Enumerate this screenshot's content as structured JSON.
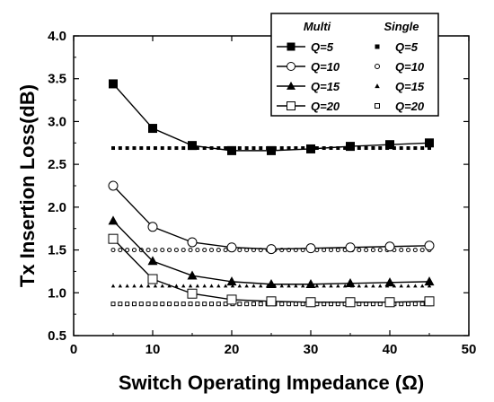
{
  "chart_data": {
    "type": "line",
    "xlabel": "Switch Operating Impedance (Ω)",
    "ylabel": "Tx Insertion Loss(dB)",
    "xlim": [
      0,
      50
    ],
    "ylim": [
      0.5,
      4.0
    ],
    "x_ticks": [
      "0",
      "10",
      "20",
      "30",
      "40",
      "50"
    ],
    "y_ticks": [
      "0.5",
      "1.0",
      "1.5",
      "2.0",
      "2.5",
      "3.0",
      "3.5",
      "4.0"
    ],
    "grid": false,
    "legend_position": "top-right",
    "legend_headers": [
      "Multi",
      "Single"
    ],
    "x": [
      5,
      10,
      15,
      20,
      25,
      30,
      35,
      40,
      45
    ],
    "series": [
      {
        "name": "Q=5",
        "group": "Multi",
        "marker": "square-filled",
        "line": "solid",
        "values": [
          3.44,
          2.92,
          2.72,
          2.66,
          2.66,
          2.68,
          2.71,
          2.73,
          2.75
        ]
      },
      {
        "name": "Q=10",
        "group": "Multi",
        "marker": "circle-open",
        "line": "solid",
        "values": [
          2.25,
          1.77,
          1.59,
          1.53,
          1.51,
          1.52,
          1.53,
          1.54,
          1.55
        ]
      },
      {
        "name": "Q=15",
        "group": "Multi",
        "marker": "triangle-filled",
        "line": "solid",
        "values": [
          1.84,
          1.37,
          1.2,
          1.13,
          1.1,
          1.1,
          1.11,
          1.12,
          1.13
        ]
      },
      {
        "name": "Q=20",
        "group": "Multi",
        "marker": "square-open",
        "line": "solid",
        "values": [
          1.63,
          1.16,
          0.99,
          0.92,
          0.9,
          0.89,
          0.89,
          0.89,
          0.9
        ]
      },
      {
        "name": "Q=5",
        "group": "Single",
        "marker": "square-filled",
        "line": "dotted",
        "value": 2.69
      },
      {
        "name": "Q=10",
        "group": "Single",
        "marker": "circle-open",
        "line": "dotted",
        "value": 1.5
      },
      {
        "name": "Q=15",
        "group": "Single",
        "marker": "triangle-filled",
        "line": "dotted",
        "value": 1.08
      },
      {
        "name": "Q=20",
        "group": "Single",
        "marker": "square-open",
        "line": "dotted",
        "value": 0.87
      }
    ]
  }
}
